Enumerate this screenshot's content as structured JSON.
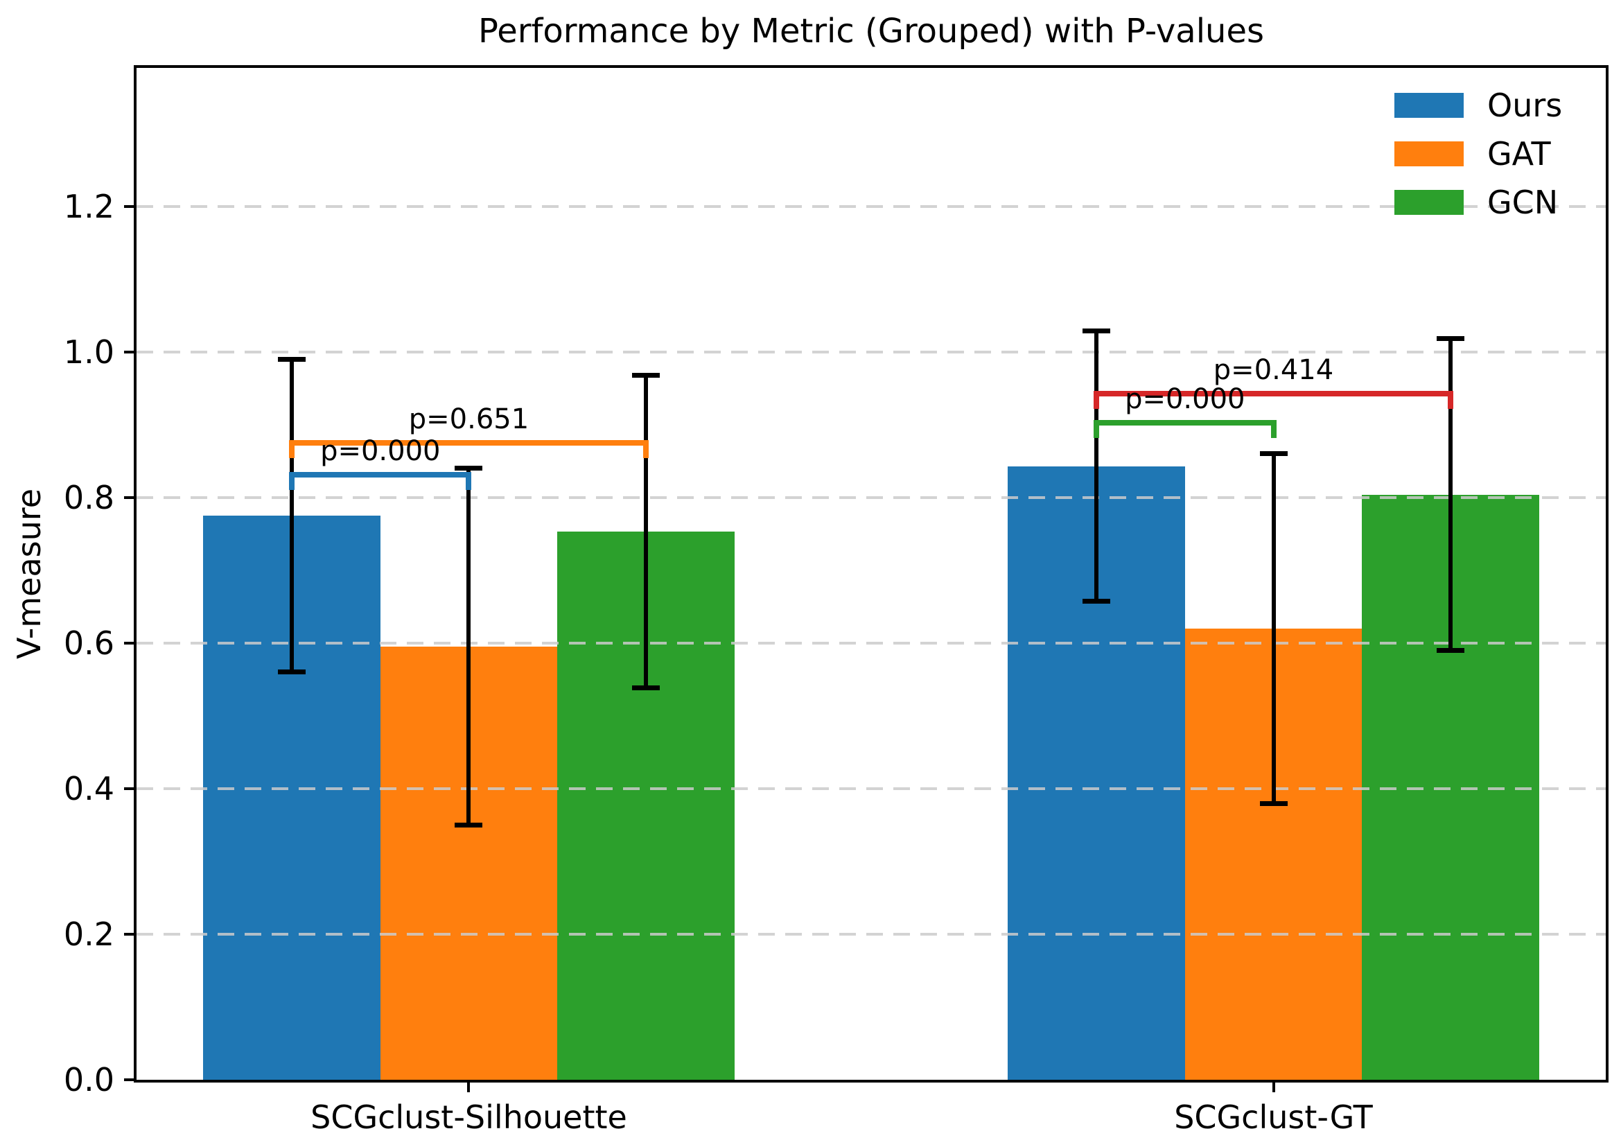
{
  "chart_data": {
    "type": "bar",
    "title": "Performance by Metric (Grouped) with P-values",
    "xlabel": "",
    "ylabel": "V-measure",
    "categories": [
      "SCGclust-Silhouette",
      "SCGclust-GT"
    ],
    "series": [
      {
        "name": "Ours",
        "color": "#1f77b4",
        "values": [
          0.775,
          0.843
        ],
        "errors": [
          0.215,
          0.186
        ]
      },
      {
        "name": "GAT",
        "color": "#ff7f0e",
        "values": [
          0.595,
          0.62
        ],
        "errors": [
          0.246,
          0.241
        ]
      },
      {
        "name": "GCN",
        "color": "#2ca02c",
        "values": [
          0.753,
          0.804
        ],
        "errors": [
          0.215,
          0.215
        ]
      }
    ],
    "error_bar_color": "#000000",
    "bar_width": 0.22,
    "ylim": [
      0,
      1.39
    ],
    "xlim": [
      -0.413,
      1.413
    ],
    "yticks": [
      "0.0",
      "0.2",
      "0.4",
      "0.6",
      "0.8",
      "1.0",
      "1.2"
    ],
    "ytick_values": [
      0.0,
      0.2,
      0.4,
      0.6,
      0.8,
      1.0,
      1.2
    ],
    "grid": "horizontal dashed lightgray",
    "legend_position": "upper right",
    "significance_brackets": [
      {
        "category_index": 0,
        "between": [
          "Ours",
          "GAT"
        ],
        "p_label": "p=0.000",
        "height": 0.835,
        "color": "#1f77b4"
      },
      {
        "category_index": 0,
        "between": [
          "Ours",
          "GCN"
        ],
        "p_label": "p=0.651",
        "height": 0.879,
        "color": "#ff7f0e"
      },
      {
        "category_index": 1,
        "between": [
          "Ours",
          "GAT"
        ],
        "p_label": "p=0.000",
        "height": 0.906,
        "color": "#2ca02c"
      },
      {
        "category_index": 1,
        "between": [
          "Ours",
          "GCN"
        ],
        "p_label": "p=0.414",
        "height": 0.946,
        "color": "#d62728"
      }
    ]
  }
}
